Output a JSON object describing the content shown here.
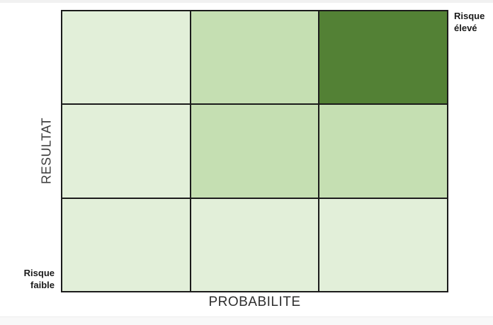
{
  "chart_data": {
    "type": "heatmap",
    "title": "",
    "xlabel": "PROBABILITE",
    "ylabel": "RESULTAT",
    "rows": 3,
    "cols": 3,
    "cells": [
      [
        "low",
        "medium",
        "high"
      ],
      [
        "low",
        "medium",
        "medium"
      ],
      [
        "low",
        "low",
        "low"
      ]
    ],
    "colors": {
      "low": "#e2efd9",
      "medium": "#c5dfb2",
      "high": "#538135",
      "grid_line": "#1b1b1b"
    },
    "annotations": [
      {
        "text": "Risque\nélevé",
        "position": "top-right"
      },
      {
        "text": "Risque\nfaible",
        "position": "bottom-left"
      }
    ],
    "legend_position": "none",
    "grid": true
  },
  "labels": {
    "x_axis": "PROBABILITE",
    "y_axis": "RESULTAT",
    "high_risk": "Risque\nélevé",
    "low_risk": "Risque\nfaible"
  }
}
